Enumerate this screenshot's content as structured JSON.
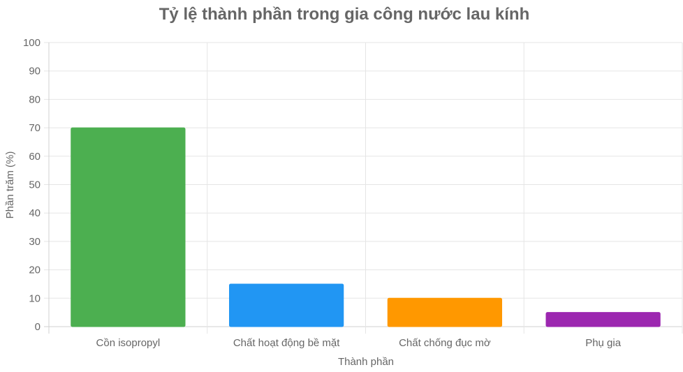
{
  "chart_data": {
    "type": "bar",
    "title": "Tỷ lệ thành phần trong gia công nước lau kính",
    "xlabel": "Thành phần",
    "ylabel": "Phần trăm (%)",
    "categories": [
      "Cồn isopropyl",
      "Chất hoạt động bề mặt",
      "Chất chống đục mờ",
      "Phụ gia"
    ],
    "values": [
      70,
      15,
      10,
      5
    ],
    "colors": [
      "#4caf50",
      "#2196f3",
      "#ff9800",
      "#9c27b0"
    ],
    "ylim": [
      0,
      100
    ],
    "yticks": [
      0,
      10,
      20,
      30,
      40,
      50,
      60,
      70,
      80,
      90,
      100
    ],
    "grid": true,
    "legend": "none"
  }
}
